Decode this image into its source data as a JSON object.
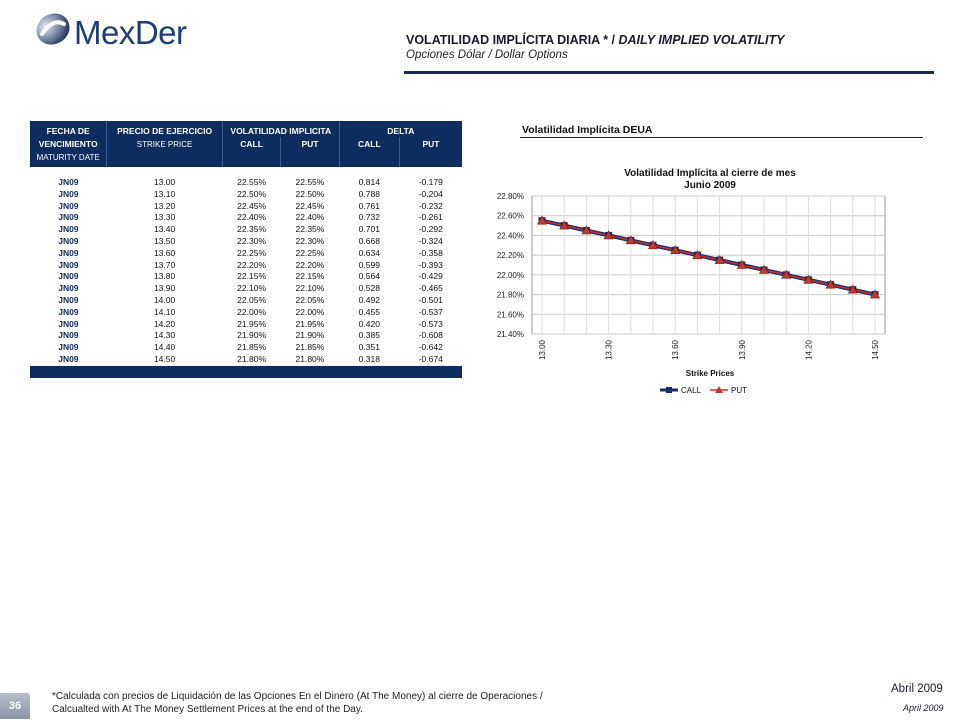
{
  "logo": {
    "text": "MexDer"
  },
  "header": {
    "title_es": "VOLATILIDAD IMPLÍCITA DIARIA * / ",
    "title_en": "DAILY IMPLIED VOLATILITY",
    "subtitle": "Opciones Dólar / Dollar Options"
  },
  "table": {
    "headers": {
      "col1_line1": "FECHA DE",
      "col1_line2": "VENCIMIENTO",
      "col1_line3": "MATURITY DATE",
      "col2_line1": "PRECIO DE EJERCICIO",
      "col2_line2": "STRIKE PRICE",
      "vol_group": "VOLATILIDAD IMPLICITA",
      "delta_group": "DELTA",
      "call": "CALL",
      "put": "PUT"
    },
    "rows": [
      [
        "JN09",
        "13.00",
        "22.55%",
        "22.55%",
        "0.814",
        "-0.179"
      ],
      [
        "JN09",
        "13.10",
        "22.50%",
        "22.50%",
        "0.788",
        "-0.204"
      ],
      [
        "JN09",
        "13.20",
        "22.45%",
        "22.45%",
        "0.761",
        "-0.232"
      ],
      [
        "JN09",
        "13.30",
        "22.40%",
        "22.40%",
        "0.732",
        "-0.261"
      ],
      [
        "JN09",
        "13.40",
        "22.35%",
        "22.35%",
        "0.701",
        "-0.292"
      ],
      [
        "JN09",
        "13.50",
        "22.30%",
        "22.30%",
        "0.668",
        "-0.324"
      ],
      [
        "JN09",
        "13.60",
        "22.25%",
        "22.25%",
        "0.634",
        "-0.358"
      ],
      [
        "JN09",
        "13.70",
        "22.20%",
        "22.20%",
        "0.599",
        "-0.393"
      ],
      [
        "JN09",
        "13.80",
        "22.15%",
        "22.15%",
        "0.564",
        "-0.429"
      ],
      [
        "JN09",
        "13.90",
        "22.10%",
        "22.10%",
        "0.528",
        "-0.465"
      ],
      [
        "JN09",
        "14.00",
        "22.05%",
        "22.05%",
        "0.492",
        "-0.501"
      ],
      [
        "JN09",
        "14.10",
        "22.00%",
        "22.00%",
        "0.455",
        "-0.537"
      ],
      [
        "JN09",
        "14.20",
        "21.95%",
        "21.95%",
        "0.420",
        "-0.573"
      ],
      [
        "JN09",
        "14.30",
        "21.90%",
        "21.90%",
        "0.385",
        "-0.608"
      ],
      [
        "JN09",
        "14.40",
        "21.85%",
        "21.85%",
        "0.351",
        "-0.642"
      ],
      [
        "JN09",
        "14.50",
        "21.80%",
        "21.80%",
        "0.318",
        "-0.674"
      ]
    ]
  },
  "chart_section_title": "Volatilidad Implícita DEUA",
  "chart_data": {
    "type": "line",
    "title": "Volatilidad Implícita  al cierre de mes",
    "subtitle": "Junio 2009",
    "xlabel": "Strike Prices",
    "ylabel": "",
    "x": [
      13.0,
      13.1,
      13.2,
      13.3,
      13.4,
      13.5,
      13.6,
      13.7,
      13.8,
      13.9,
      14.0,
      14.1,
      14.2,
      14.3,
      14.4,
      14.5
    ],
    "x_tick_labels": [
      "13.00",
      "13.30",
      "13.60",
      "13.90",
      "14.20",
      "14.50"
    ],
    "x_tick_values": [
      13.0,
      13.3,
      13.6,
      13.9,
      14.2,
      14.5
    ],
    "y_ticks": [
      "22.80%",
      "22.60%",
      "22.40%",
      "22.20%",
      "22.00%",
      "21.80%",
      "21.60%",
      "21.40%"
    ],
    "ylim": [
      21.4,
      22.8
    ],
    "grid": true,
    "legend_position": "bottom",
    "series": [
      {
        "name": "CALL",
        "color": "#1a2a6b",
        "marker": "square",
        "values": [
          22.55,
          22.5,
          22.45,
          22.4,
          22.35,
          22.3,
          22.25,
          22.2,
          22.15,
          22.1,
          22.05,
          22.0,
          21.95,
          21.9,
          21.85,
          21.8
        ]
      },
      {
        "name": "PUT",
        "color": "#c0392b",
        "marker": "triangle",
        "values": [
          22.55,
          22.5,
          22.45,
          22.4,
          22.35,
          22.3,
          22.25,
          22.2,
          22.15,
          22.1,
          22.05,
          22.0,
          21.95,
          21.9,
          21.85,
          21.8
        ]
      }
    ]
  },
  "footer": {
    "note_line1": "*Calculada con precios de Liquidación de las Opciones En el Dinero (At The Money) al cierre de Operaciones /",
    "note_line2": "Calcualted with At The Money Settlement Prices at the end of the Day.",
    "page_number": "36",
    "date_es": "Abril 2009",
    "date_en": "April 2009"
  }
}
